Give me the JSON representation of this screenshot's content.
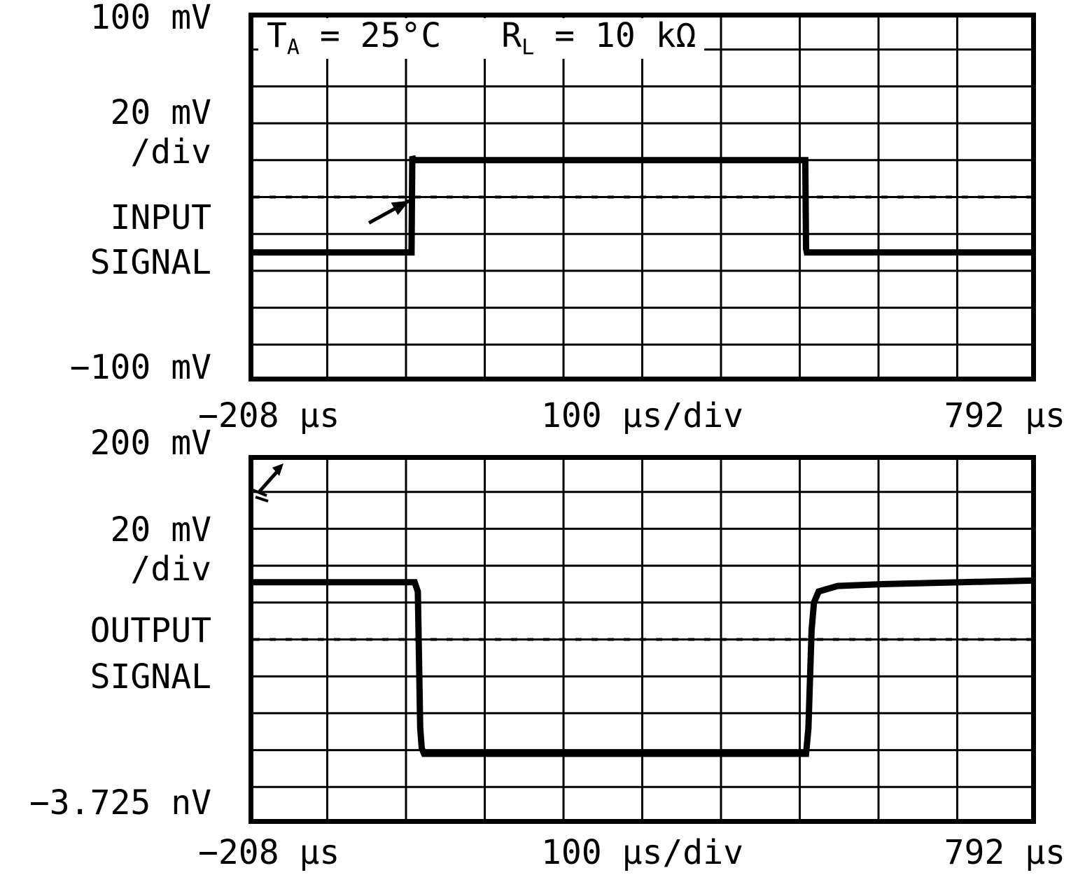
{
  "figure": {
    "background": "#ffffff",
    "line_color": "#000000"
  },
  "chart_data": {
    "type": "line",
    "note": "Oscilloscope-style small-signal pulse response figure: input square wave (top) and inverted, slew-limited output (bottom).",
    "grid": "10x10 divisions, both charts",
    "x_range_us": [
      -208,
      792
    ],
    "x_scale": "100 us/div",
    "input": {
      "y_scale": "20 mV/div",
      "y_range_mV": [
        -100,
        100
      ],
      "low_mV": -30,
      "high_mV": 20,
      "rise_at_us": 0,
      "fall_at_us": 500
    },
    "output": {
      "y_scale": "20 mV/div",
      "y_range_mV": [
        0,
        200
      ],
      "high_mV": 131,
      "low_mV": 38,
      "fall_at_us": 8,
      "rise_at_us": 504
    }
  },
  "charts": [
    {
      "name": "input",
      "y_axis": {
        "top_label": "100 mV",
        "per_div": "20 mV",
        "per_div2": "/div",
        "bottom_label": "−100 mV",
        "max": 100,
        "min": -100
      },
      "signal_label": {
        "line1": "INPUT",
        "line2": "SIGNAL"
      },
      "x_axis": {
        "left_label": "−208 μs",
        "center_label": "100 μs/div",
        "right_label": "792 μs",
        "min": -208,
        "max": 792
      },
      "grid": {
        "cols": 10,
        "rows": 10
      },
      "reference_line_value": 0,
      "annotation": {
        "p1": "T",
        "sub1": "A",
        "mid": " = 25°C",
        "p2": "R",
        "sub2": "L",
        "end": " = 10 kΩ"
      },
      "arrow": {
        "from_t": -55,
        "from_v": -14,
        "to_t": -4,
        "to_v": -2
      },
      "series": {
        "name": "input-waveform",
        "points": [
          [
            -208,
            -30
          ],
          [
            -1,
            -30
          ],
          [
            0,
            22
          ],
          [
            2,
            20
          ],
          [
            499,
            20
          ],
          [
            500,
            -28
          ],
          [
            501,
            -30
          ],
          [
            792,
            -30
          ]
        ]
      }
    },
    {
      "name": "output",
      "y_axis": {
        "top_label": "200 mV",
        "per_div": "20 mV",
        "per_div2": "/div",
        "bottom_label": "−3.725 nV",
        "max": 200,
        "min": 0
      },
      "signal_label": {
        "line1": "OUTPUT",
        "line2": "SIGNAL"
      },
      "x_axis": {
        "left_label": "−208 μs",
        "center_label": "100 μs/div",
        "right_label": "792 μs",
        "min": -208,
        "max": 792
      },
      "grid": {
        "cols": 10,
        "rows": 10
      },
      "reference_line_value": 100,
      "series": {
        "name": "output-waveform",
        "points": [
          [
            -208,
            131
          ],
          [
            3,
            131
          ],
          [
            7,
            126
          ],
          [
            10,
            52
          ],
          [
            12,
            41
          ],
          [
            15,
            38
          ],
          [
            500,
            38
          ],
          [
            503,
            52
          ],
          [
            507,
            105
          ],
          [
            510,
            120
          ],
          [
            516,
            126
          ],
          [
            540,
            129
          ],
          [
            600,
            130
          ],
          [
            792,
            132
          ]
        ]
      }
    }
  ]
}
